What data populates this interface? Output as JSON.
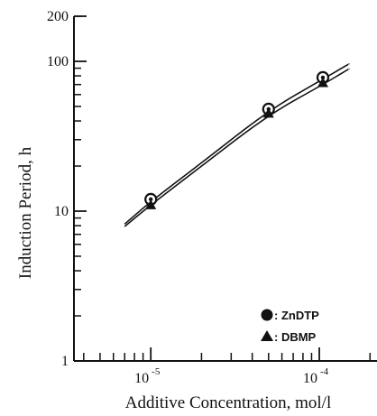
{
  "chart_data": {
    "type": "line",
    "xlabel": "Additive Concentration, mol/l",
    "ylabel": "Induction Period, h",
    "x_scale": "log",
    "y_scale": "log",
    "xlim": [
      3.5e-06,
      0.00022
    ],
    "ylim": [
      1,
      200
    ],
    "y_ticks": [
      {
        "value": 1,
        "label": "1"
      },
      {
        "value": 10,
        "label": "10"
      },
      {
        "value": 100,
        "label": "100"
      },
      {
        "value": 200,
        "label": "200"
      }
    ],
    "x_ticks": [
      {
        "value": 1e-05,
        "base": "10",
        "exp": "-5"
      },
      {
        "value": 0.0001,
        "base": "10",
        "exp": "-4"
      }
    ],
    "grid": false,
    "legend_position": "bottom-right",
    "series": [
      {
        "name": "ZnDTP",
        "marker": "circle",
        "points": [
          {
            "x": 1e-05,
            "y": 12
          },
          {
            "x": 5e-05,
            "y": 48
          },
          {
            "x": 0.000105,
            "y": 78
          }
        ],
        "curve": [
          {
            "x": 7e-06,
            "y": 8.2
          },
          {
            "x": 1e-05,
            "y": 11.6
          },
          {
            "x": 2e-05,
            "y": 21
          },
          {
            "x": 5e-05,
            "y": 47
          },
          {
            "x": 0.000105,
            "y": 76
          },
          {
            "x": 0.00015,
            "y": 96
          }
        ]
      },
      {
        "name": "DBMP",
        "marker": "triangle",
        "points": [
          {
            "x": 1e-05,
            "y": 11
          },
          {
            "x": 5e-05,
            "y": 45
          },
          {
            "x": 0.000105,
            "y": 72
          }
        ],
        "curve": [
          {
            "x": 7e-06,
            "y": 7.9
          },
          {
            "x": 1e-05,
            "y": 11
          },
          {
            "x": 2e-05,
            "y": 20
          },
          {
            "x": 5e-05,
            "y": 44
          },
          {
            "x": 0.000105,
            "y": 70
          },
          {
            "x": 0.00015,
            "y": 89
          }
        ]
      }
    ],
    "legend": [
      {
        "marker": "circle",
        "label": ": ZnDTP"
      },
      {
        "marker": "triangle",
        "label": ": DBMP"
      }
    ]
  }
}
